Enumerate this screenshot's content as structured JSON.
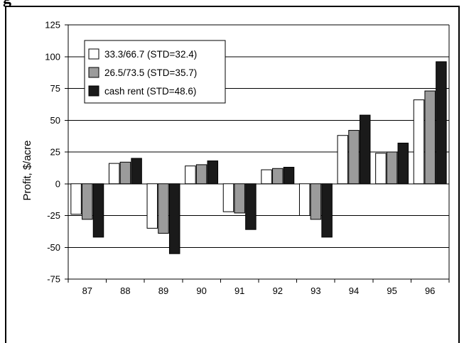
{
  "page": {
    "heading_fragment": "g"
  },
  "chart_data": {
    "type": "bar",
    "title": "",
    "xlabel": "",
    "ylabel": "Profit, $/acre",
    "ylim": [
      -75,
      125
    ],
    "yticks": [
      125,
      100,
      75,
      50,
      25,
      0,
      -25,
      -50,
      -75
    ],
    "categories": [
      "87",
      "88",
      "89",
      "90",
      "91",
      "92",
      "93",
      "94",
      "95",
      "96"
    ],
    "grid": "horizontal",
    "legend_position": "top-left",
    "series": [
      {
        "name": "33.3/66.7 (STD=32.4)",
        "color": "#ffffff",
        "values": [
          -24,
          16,
          -35,
          14,
          -22,
          11,
          -25,
          38,
          24,
          66
        ]
      },
      {
        "name": "26.5/73.5 (STD=35.7)",
        "color": "#9b9b9b",
        "values": [
          -28,
          17,
          -39,
          15,
          -23,
          12,
          -28,
          42,
          25,
          73
        ]
      },
      {
        "name": "cash rent (STD=48.6)",
        "color": "#1a1a1a",
        "values": [
          -42,
          20,
          -55,
          18,
          -36,
          13,
          -42,
          54,
          32,
          96
        ]
      }
    ]
  }
}
